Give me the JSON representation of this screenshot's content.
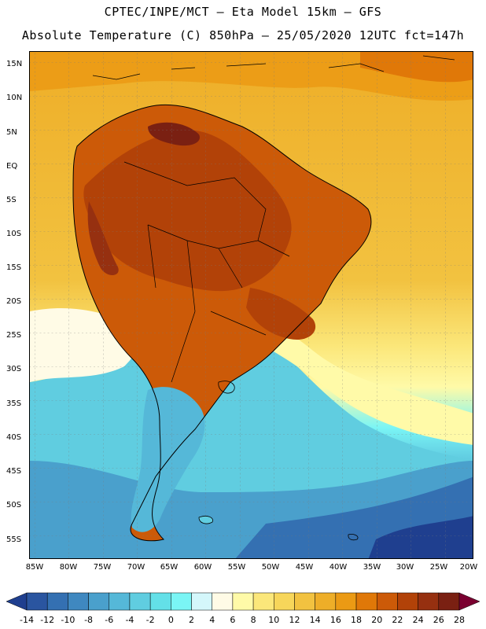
{
  "header": {
    "title_line1": "CPTEC/INPE/MCT –  Eta Model 15km – GFS",
    "title_line2": "Absolute Temperature (C) 850hPa – 25/05/2020 12UTC fct=147h"
  },
  "axes": {
    "lat_labels": [
      "15N",
      "10N",
      "5N",
      "EQ",
      "5S",
      "10S",
      "15S",
      "20S",
      "25S",
      "30S",
      "35S",
      "40S",
      "45S",
      "50S",
      "55S"
    ],
    "lon_labels": [
      "85W",
      "80W",
      "75W",
      "70W",
      "65W",
      "60W",
      "55W",
      "50W",
      "45W",
      "40W",
      "35W",
      "30W",
      "25W",
      "20W"
    ]
  },
  "colorbar": {
    "labels": [
      "-14",
      "-12",
      "-10",
      "-8",
      "-6",
      "-4",
      "-2",
      "0",
      "2",
      "4",
      "6",
      "8",
      "10",
      "12",
      "14",
      "16",
      "18",
      "20",
      "22",
      "24",
      "26",
      "28"
    ],
    "colors": [
      "#1f3f8f",
      "#2a55a0",
      "#3470b2",
      "#3f88c0",
      "#4aa0cc",
      "#55b8d8",
      "#60cde0",
      "#63e0e8",
      "#7af5f5",
      "#d4f7fb",
      "#fffbe6",
      "#fffaa8",
      "#fbe77a",
      "#f7d65a",
      "#f2c240",
      "#eeae28",
      "#eb9a14",
      "#e07808",
      "#cc5a08",
      "#b24208",
      "#963010",
      "#7a2012",
      "#7a0030"
    ]
  },
  "palette": {
    "sea_cold_deep": "#1f3f8f",
    "sea_cold": "#3f88c0",
    "sea_cool": "#60cde0",
    "sea_mild": "#fffaa8",
    "sea_warm": "#f2c240",
    "land_hot": "#cc5a08",
    "land_very_hot": "#963010"
  }
}
